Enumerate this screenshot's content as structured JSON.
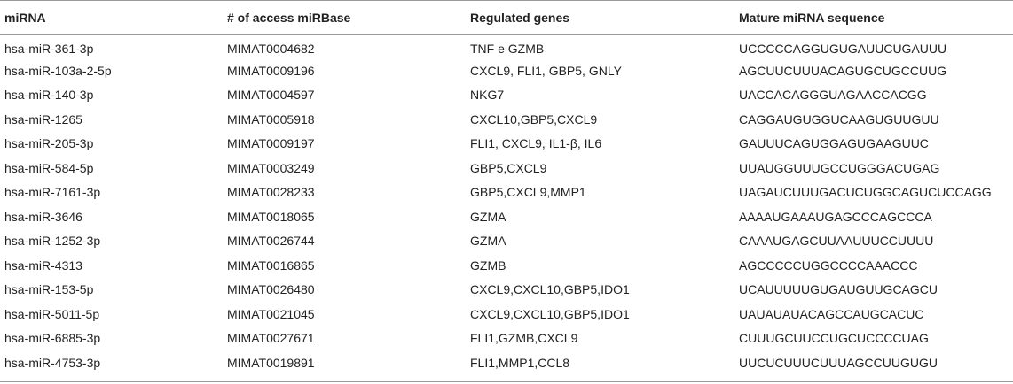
{
  "table": {
    "headers": [
      "miRNA",
      "# of access miRBase",
      "Regulated genes",
      "Mature miRNA sequence"
    ],
    "rows": [
      [
        "hsa-miR-361-3p",
        "MIMAT0004682",
        "TNF e GZMB",
        "UCCCCCAGGUGUGAUUCUGAUUU"
      ],
      [
        "hsa-miR-103a-2-5p",
        "MIMAT0009196",
        "CXCL9, FLI1, GBP5, GNLY",
        "AGCUUCUUUACAGUGCUGCCUUG"
      ],
      [
        "hsa-miR-140-3p",
        "MIMAT0004597",
        "NKG7",
        "UACCACAGGGUAGAACCACGG"
      ],
      [
        "hsa-miR-1265",
        "MIMAT0005918",
        "CXCL10,GBP5,CXCL9",
        "CAGGAUGUGGUCAAGUGUUGUU"
      ],
      [
        "hsa-miR-205-3p",
        "MIMAT0009197",
        "FLI1, CXCL9, IL1-β, IL6",
        "GAUUUCAGUGGAGUGAAGUUC"
      ],
      [
        "hsa-miR-584-5p",
        "MIMAT0003249",
        "GBP5,CXCL9",
        "UUAUGGUUUGCCUGGGACUGAG"
      ],
      [
        "hsa-miR-7161-3p",
        "MIMAT0028233",
        "GBP5,CXCL9,MMP1",
        "UAGAUCUUUGACUCUGGCAGUCUCCAGG"
      ],
      [
        "hsa-miR-3646",
        "MIMAT0018065",
        "GZMA",
        "AAAAUGAAAUGAGCCCAGCCCA"
      ],
      [
        "hsa-miR-1252-3p",
        "MIMAT0026744",
        "GZMA",
        "CAAAUGAGCUUAAUUUCCUUUU"
      ],
      [
        "hsa-miR-4313",
        "MIMAT0016865",
        "GZMB",
        "AGCCCCCUGGCCCCAAACCC"
      ],
      [
        "hsa-miR-153-5p",
        "MIMAT0026480",
        "CXCL9,CXCL10,GBP5,IDO1",
        "UCAUUUUUGUGAUGUUGCAGCU"
      ],
      [
        "hsa-miR-5011-5p",
        "MIMAT0021045",
        "CXCL9,CXCL10,GBP5,IDO1",
        "UAUAUAUACAGCCAUGCACUC"
      ],
      [
        "hsa-miR-6885-3p",
        "MIMAT0027671",
        "FLI1,GZMB,CXCL9",
        "CUUUGCUUCCUGCUCCCCUAG"
      ],
      [
        "hsa-miR-4753-3p",
        "MIMAT0019891",
        "FLI1,MMP1,CCL8",
        "UUCUCUUUCUUUAGCCUUGUGU"
      ]
    ]
  }
}
